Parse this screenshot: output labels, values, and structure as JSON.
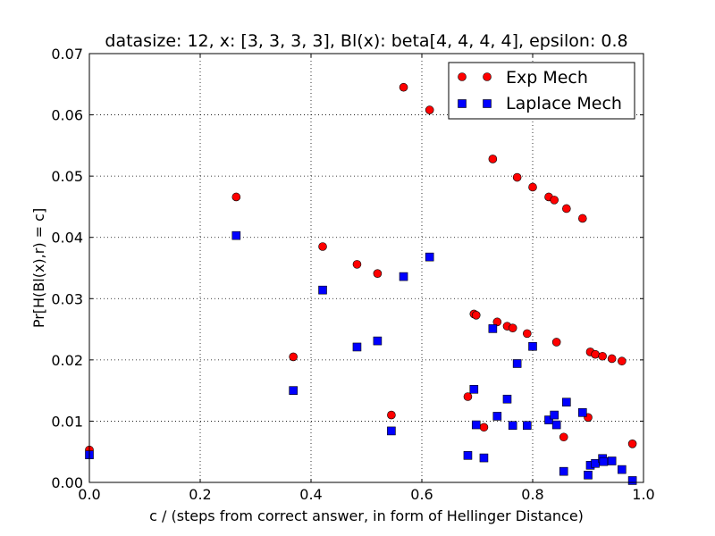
{
  "chart_data": {
    "type": "scatter",
    "title": "datasize: 12, x: [3, 3, 3, 3], Bl(x): beta[4, 4, 4, 4], epsilon: 0.8",
    "xlabel": "c / (steps from correct answer, in form of Hellinger Distance)",
    "ylabel": "Pr[H(Bl(x),r) = c]",
    "xlim": [
      0.0,
      1.0
    ],
    "ylim": [
      0.0,
      0.07
    ],
    "xticks": [
      "0.0",
      "0.2",
      "0.4",
      "0.6",
      "0.8",
      "1.0"
    ],
    "yticks": [
      "0.00",
      "0.01",
      "0.02",
      "0.03",
      "0.04",
      "0.05",
      "0.06",
      "0.07"
    ],
    "grid": true,
    "legend_position": "top-right",
    "series": [
      {
        "name": "Exp Mech",
        "marker": "circle",
        "color": "#ff0000",
        "points": [
          [
            0.0,
            0.0053
          ],
          [
            0.265,
            0.0466
          ],
          [
            0.368,
            0.0205
          ],
          [
            0.421,
            0.0385
          ],
          [
            0.483,
            0.0356
          ],
          [
            0.52,
            0.0341
          ],
          [
            0.545,
            0.011
          ],
          [
            0.567,
            0.0645
          ],
          [
            0.614,
            0.0608
          ],
          [
            0.683,
            0.014
          ],
          [
            0.694,
            0.0275
          ],
          [
            0.698,
            0.0273
          ],
          [
            0.712,
            0.009
          ],
          [
            0.728,
            0.0528
          ],
          [
            0.736,
            0.0262
          ],
          [
            0.754,
            0.0255
          ],
          [
            0.764,
            0.0252
          ],
          [
            0.772,
            0.0498
          ],
          [
            0.79,
            0.0243
          ],
          [
            0.8,
            0.0482
          ],
          [
            0.829,
            0.0466
          ],
          [
            0.839,
            0.0461
          ],
          [
            0.843,
            0.0229
          ],
          [
            0.856,
            0.0074
          ],
          [
            0.861,
            0.0447
          ],
          [
            0.89,
            0.0431
          ],
          [
            0.9,
            0.0106
          ],
          [
            0.904,
            0.0213
          ],
          [
            0.913,
            0.0209
          ],
          [
            0.926,
            0.0206
          ],
          [
            0.943,
            0.0202
          ],
          [
            0.961,
            0.0198
          ],
          [
            0.98,
            0.0063
          ]
        ]
      },
      {
        "name": "Laplace Mech",
        "marker": "square",
        "color": "#0000ff",
        "points": [
          [
            0.0,
            0.0045
          ],
          [
            0.265,
            0.0403
          ],
          [
            0.368,
            0.015
          ],
          [
            0.421,
            0.0314
          ],
          [
            0.483,
            0.0221
          ],
          [
            0.52,
            0.0231
          ],
          [
            0.545,
            0.0084
          ],
          [
            0.567,
            0.0336
          ],
          [
            0.614,
            0.0368
          ],
          [
            0.683,
            0.0044
          ],
          [
            0.694,
            0.0152
          ],
          [
            0.698,
            0.0094
          ],
          [
            0.712,
            0.004
          ],
          [
            0.728,
            0.0251
          ],
          [
            0.736,
            0.0108
          ],
          [
            0.754,
            0.0136
          ],
          [
            0.764,
            0.0093
          ],
          [
            0.772,
            0.0194
          ],
          [
            0.79,
            0.0093
          ],
          [
            0.8,
            0.0222
          ],
          [
            0.829,
            0.0102
          ],
          [
            0.839,
            0.011
          ],
          [
            0.843,
            0.0094
          ],
          [
            0.856,
            0.0018
          ],
          [
            0.861,
            0.0131
          ],
          [
            0.89,
            0.0114
          ],
          [
            0.9,
            0.0012
          ],
          [
            0.904,
            0.0028
          ],
          [
            0.913,
            0.0031
          ],
          [
            0.926,
            0.0039
          ],
          [
            0.928,
            0.0034
          ],
          [
            0.943,
            0.0035
          ],
          [
            0.961,
            0.0021
          ],
          [
            0.98,
            0.0003
          ]
        ]
      }
    ]
  }
}
